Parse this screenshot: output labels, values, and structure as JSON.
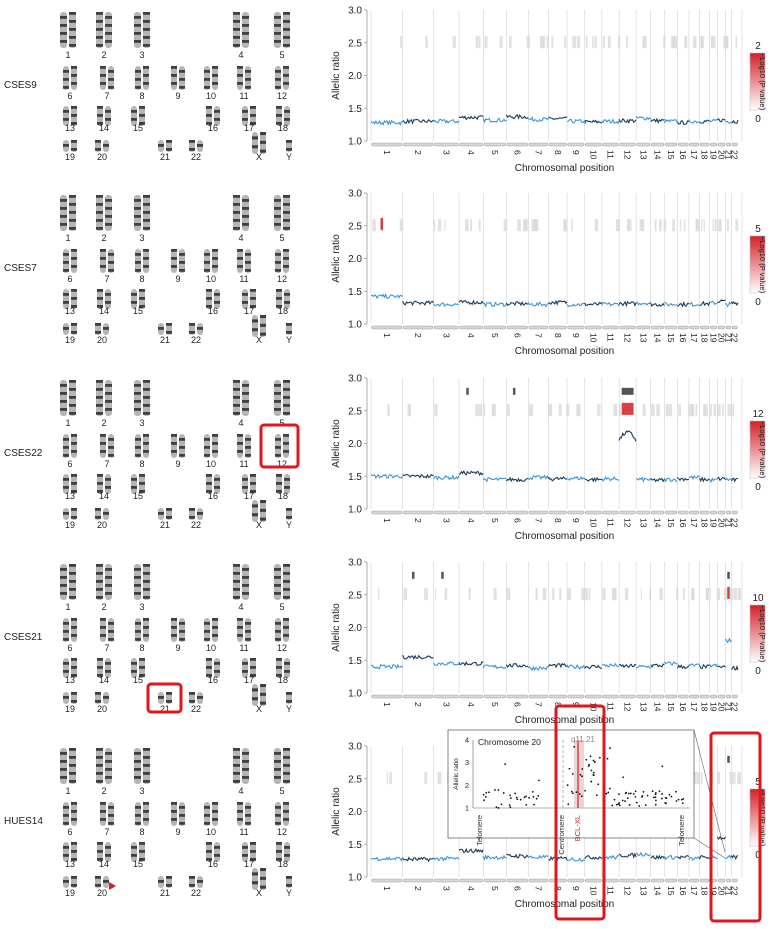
{
  "figure": {
    "rows": [
      {
        "sample": "CSES9",
        "karyotype_labels": {
          "row1": [
            "1",
            "2",
            "3",
            "4",
            "5"
          ],
          "row2": [
            "6",
            "7",
            "8",
            "9",
            "10",
            "11",
            "12"
          ],
          "row3": [
            "13",
            "14",
            "15",
            "16",
            "17",
            "18"
          ],
          "row4": [
            "19",
            "20",
            "21",
            "22",
            "X",
            "Y"
          ]
        },
        "chart": {
          "y_ticks": [
            "3.0",
            "2.5",
            "2.0",
            "1.5",
            "1.0"
          ],
          "scale_max": "2",
          "scale_min": "0",
          "scale_label": "−Log10 (P value)"
        }
      },
      {
        "sample": "CSES7",
        "karyotype_labels": {
          "row1": [
            "1",
            "2",
            "3",
            "4",
            "5"
          ],
          "row2": [
            "6",
            "7",
            "8",
            "9",
            "10",
            "11",
            "12"
          ],
          "row3": [
            "13",
            "14",
            "15",
            "16",
            "17",
            "18"
          ],
          "row4": [
            "19",
            "20",
            "21",
            "22",
            "X",
            "Y"
          ]
        },
        "chart": {
          "y_ticks": [
            "3.0",
            "2.5",
            "2.0",
            "1.5",
            "1.0"
          ],
          "scale_max": "5",
          "scale_min": "0",
          "scale_label": "−Log10 (P value)"
        }
      },
      {
        "sample": "CSES22",
        "karyotype_labels": {
          "row1": [
            "1",
            "2",
            "3",
            "4",
            "5"
          ],
          "row2": [
            "6",
            "7",
            "8",
            "9",
            "10",
            "11",
            "12"
          ],
          "row3": [
            "13",
            "14",
            "15",
            "16",
            "17",
            "18"
          ],
          "row4": [
            "19",
            "20",
            "21",
            "22",
            "X",
            "Y"
          ]
        },
        "chart": {
          "y_ticks": [
            "3.0",
            "2.5",
            "2.0",
            "1.5",
            "1.0"
          ],
          "scale_max": "12",
          "scale_min": "0",
          "scale_label": "−Log10 (P value)"
        }
      },
      {
        "sample": "CSES21",
        "karyotype_labels": {
          "row1": [
            "1",
            "2",
            "3",
            "4",
            "5"
          ],
          "row2": [
            "6",
            "7",
            "8",
            "9",
            "10",
            "11",
            "12"
          ],
          "row3": [
            "13",
            "14",
            "15",
            "16",
            "17",
            "18"
          ],
          "row4": [
            "19",
            "20",
            "21",
            "22",
            "X",
            "Y"
          ]
        },
        "chart": {
          "y_ticks": [
            "3.0",
            "2.5",
            "2.0",
            "1.5",
            "1.0"
          ],
          "scale_max": "10",
          "scale_min": "0",
          "scale_label": "−Log10 (P value)"
        }
      },
      {
        "sample": "HUES14",
        "karyotype_labels": {
          "row1": [
            "1",
            "2",
            "3",
            "4",
            "5"
          ],
          "row2": [
            "6",
            "7",
            "8",
            "9",
            "10",
            "11",
            "12"
          ],
          "row3": [
            "13",
            "14",
            "15",
            "16",
            "17",
            "18"
          ],
          "row4": [
            "19",
            "20",
            "21",
            "22",
            "X",
            "Y"
          ]
        },
        "chart": {
          "y_ticks": [
            "3.0",
            "2.5",
            "2.0",
            "1.5",
            "1.0"
          ],
          "scale_max": "5",
          "scale_min": "0",
          "scale_label": "−Log10 (P value)"
        }
      }
    ],
    "common": {
      "ylabel": "Allelic ratio",
      "xlabel": "Chromosomal position",
      "chromosome_ticks": [
        "1",
        "2",
        "3",
        "4",
        "5",
        "6",
        "7",
        "8",
        "9",
        "10",
        "11",
        "12",
        "13",
        "14",
        "15",
        "16",
        "17",
        "18",
        "19",
        "20",
        "21",
        "22"
      ]
    },
    "inset": {
      "title": "Chromosome 20",
      "band": "q11.21",
      "gene": "BCL-XL",
      "centromere_label": "Centromere",
      "telomere_left": "Telomere",
      "telomere_right": "Telomere",
      "y_ticks": [
        "4",
        "3",
        "2",
        "1"
      ],
      "ylabel": "Allelic ratio"
    },
    "colors": {
      "line_light": "#3a96d8",
      "line_dark": "#1b3a5a",
      "highlight_box": "#e0161b",
      "pvalue_red": "#d42027",
      "pvalue_gray": "#555555",
      "grid": "#c8c8c8"
    }
  },
  "chart_data": [
    {
      "type": "line",
      "title": "CSES9",
      "xlabel": "Chromosomal position",
      "ylabel": "Allelic ratio",
      "ylim": [
        1.0,
        3.0
      ],
      "categories": [
        "1",
        "2",
        "3",
        "4",
        "5",
        "6",
        "7",
        "8",
        "9",
        "10",
        "11",
        "12",
        "13",
        "14",
        "15",
        "16",
        "17",
        "18",
        "19",
        "20",
        "21",
        "22"
      ],
      "series": [
        {
          "values": [
            1.28,
            1.3,
            1.3,
            1.36,
            1.32,
            1.37,
            1.33,
            1.34,
            1.3,
            1.29,
            1.3,
            1.31,
            1.35,
            1.31,
            1.3,
            1.28,
            1.3,
            1.3,
            1.3,
            1.32,
            1.3,
            1.3
          ]
        }
      ]
    },
    {
      "type": "line",
      "title": "CSES7",
      "xlabel": "Chromosomal position",
      "ylabel": "Allelic ratio",
      "ylim": [
        1.0,
        3.0
      ],
      "categories": [
        "1",
        "2",
        "3",
        "4",
        "5",
        "6",
        "7",
        "8",
        "9",
        "10",
        "11",
        "12",
        "13",
        "14",
        "15",
        "16",
        "17",
        "18",
        "19",
        "20",
        "21",
        "22"
      ],
      "series": [
        {
          "values": [
            1.42,
            1.32,
            1.3,
            1.33,
            1.3,
            1.31,
            1.3,
            1.33,
            1.3,
            1.3,
            1.3,
            1.31,
            1.32,
            1.3,
            1.3,
            1.3,
            1.3,
            1.31,
            1.32,
            1.35,
            1.3,
            1.32
          ]
        }
      ]
    },
    {
      "type": "line",
      "title": "CSES22",
      "xlabel": "Chromosomal position",
      "ylabel": "Allelic ratio",
      "ylim": [
        1.0,
        3.0
      ],
      "categories": [
        "1",
        "2",
        "3",
        "4",
        "5",
        "6",
        "7",
        "8",
        "9",
        "10",
        "11",
        "12",
        "13",
        "14",
        "15",
        "16",
        "17",
        "18",
        "19",
        "20",
        "21",
        "22"
      ],
      "series": [
        {
          "values": [
            1.5,
            1.5,
            1.48,
            1.55,
            1.45,
            1.45,
            1.48,
            1.46,
            1.47,
            1.45,
            1.46,
            2.05,
            1.45,
            1.44,
            1.45,
            1.46,
            1.48,
            1.45,
            1.44,
            1.46,
            1.45,
            1.44
          ]
        }
      ]
    },
    {
      "type": "line",
      "title": "CSES21",
      "xlabel": "Chromosomal position",
      "ylabel": "Allelic ratio",
      "ylim": [
        1.0,
        3.0
      ],
      "categories": [
        "1",
        "2",
        "3",
        "4",
        "5",
        "6",
        "7",
        "8",
        "9",
        "10",
        "11",
        "12",
        "13",
        "14",
        "15",
        "16",
        "17",
        "18",
        "19",
        "20",
        "21",
        "22"
      ],
      "series": [
        {
          "values": [
            1.4,
            1.55,
            1.45,
            1.45,
            1.4,
            1.42,
            1.38,
            1.42,
            1.4,
            1.4,
            1.42,
            1.41,
            1.4,
            1.42,
            1.45,
            1.4,
            1.42,
            1.4,
            1.42,
            1.4,
            1.8,
            1.38
          ]
        }
      ]
    },
    {
      "type": "line",
      "title": "HUES14",
      "xlabel": "Chromosomal position",
      "ylabel": "Allelic ratio",
      "ylim": [
        1.0,
        3.0
      ],
      "categories": [
        "1",
        "2",
        "3",
        "4",
        "5",
        "6",
        "7",
        "8",
        "9",
        "10",
        "11",
        "12",
        "13",
        "14",
        "15",
        "16",
        "17",
        "18",
        "19",
        "20",
        "21",
        "22"
      ],
      "series": [
        {
          "values": [
            1.28,
            1.27,
            1.28,
            1.4,
            1.3,
            1.32,
            1.3,
            1.28,
            1.27,
            1.3,
            1.3,
            1.33,
            1.35,
            1.3,
            1.3,
            1.3,
            1.28,
            1.3,
            1.3,
            1.6,
            1.3,
            1.3
          ]
        }
      ]
    }
  ]
}
